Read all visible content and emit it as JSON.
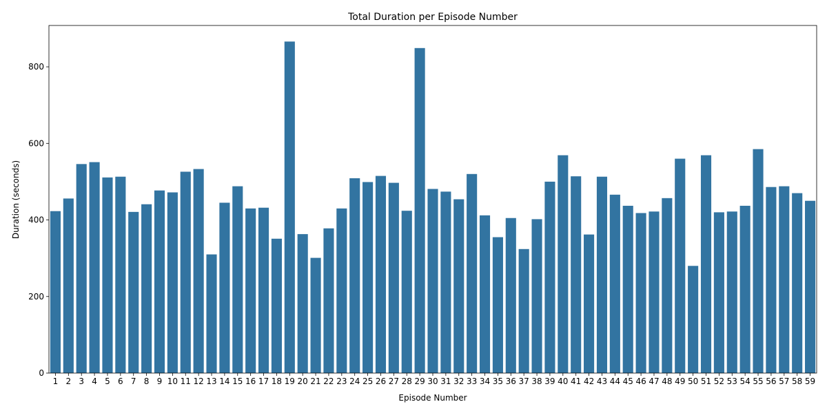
{
  "chart_data": {
    "type": "bar",
    "title": "Total Duration per Episode Number",
    "xlabel": "Episode Number",
    "ylabel": "Duration (seconds)",
    "ylim": [
      0,
      908
    ],
    "yticks": [
      0,
      200,
      400,
      600,
      800
    ],
    "bar_color": "#3274a1",
    "grid": false,
    "legend": "none",
    "categories": [
      "1",
      "2",
      "3",
      "4",
      "5",
      "6",
      "7",
      "8",
      "9",
      "10",
      "11",
      "12",
      "13",
      "14",
      "15",
      "16",
      "17",
      "18",
      "19",
      "20",
      "21",
      "22",
      "23",
      "24",
      "25",
      "26",
      "27",
      "28",
      "29",
      "30",
      "31",
      "32",
      "33",
      "34",
      "35",
      "36",
      "37",
      "38",
      "39",
      "40",
      "41",
      "42",
      "43",
      "44",
      "45",
      "46",
      "47",
      "48",
      "49",
      "50",
      "51",
      "52",
      "53",
      "54",
      "55",
      "56",
      "57",
      "58",
      "59"
    ],
    "values": [
      423,
      456,
      546,
      551,
      511,
      513,
      421,
      441,
      477,
      472,
      526,
      533,
      310,
      445,
      488,
      430,
      432,
      351,
      866,
      363,
      301,
      378,
      430,
      509,
      499,
      515,
      497,
      424,
      849,
      481,
      474,
      454,
      520,
      412,
      355,
      405,
      324,
      402,
      500,
      569,
      514,
      362,
      513,
      466,
      437,
      418,
      422,
      457,
      560,
      280,
      569,
      420,
      422,
      437,
      585,
      486,
      488,
      470,
      450
    ]
  }
}
